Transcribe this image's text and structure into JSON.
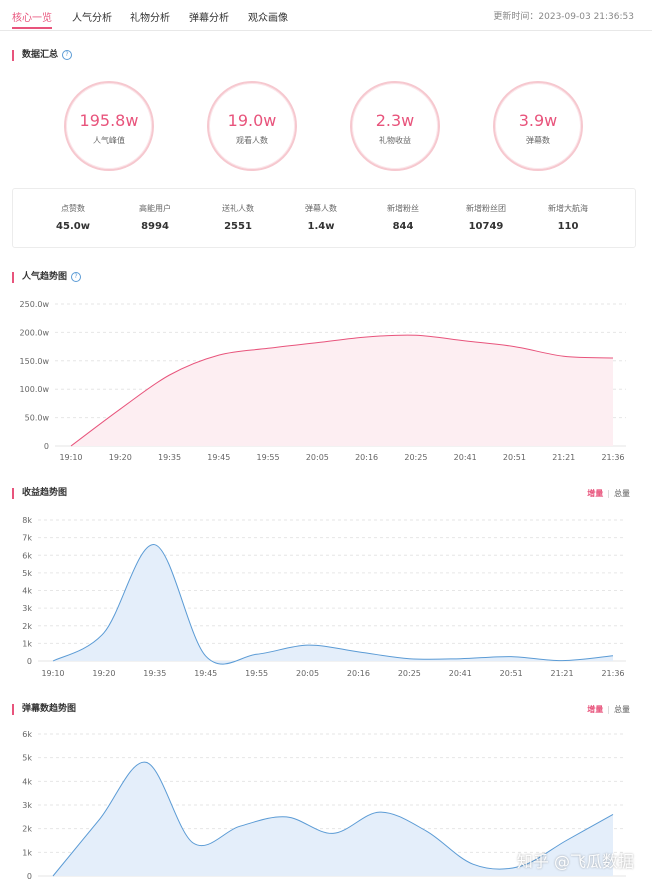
{
  "tabs": [
    "核心一览",
    "人气分析",
    "礼物分析",
    "弹幕分析",
    "观众画像"
  ],
  "active_tab": 0,
  "update_time": "更新时间：2023-09-03 21:36:53",
  "summary": {
    "title": "数据汇总",
    "circles": [
      {
        "value": "195.8w",
        "label": "人气峰值"
      },
      {
        "value": "19.0w",
        "label": "观看人数"
      },
      {
        "value": "2.3w",
        "label": "礼物收益"
      },
      {
        "value": "3.9w",
        "label": "弹幕数"
      }
    ],
    "stats": [
      {
        "label": "点赞数",
        "value": "45.0w"
      },
      {
        "label": "高能用户",
        "value": "8994"
      },
      {
        "label": "送礼人数",
        "value": "2551"
      },
      {
        "label": "弹幕人数",
        "value": "1.4w"
      },
      {
        "label": "新增粉丝",
        "value": "844"
      },
      {
        "label": "新增粉丝团",
        "value": "10749"
      },
      {
        "label": "新增大航海",
        "value": "110"
      }
    ]
  },
  "popularity_title": "人气趋势图",
  "revenue_title": "收益趋势图",
  "danmaku_title": "弹幕数趋势图",
  "toggle": {
    "increment": "增量",
    "total": "总量"
  },
  "watermark": "知乎 @飞瓜数据",
  "colors": {
    "accent": "#e8547c",
    "blue": "#5b9bd5"
  },
  "chart_data": [
    {
      "type": "area",
      "x": [
        "19:10",
        "19:20",
        "19:35",
        "19:45",
        "19:55",
        "20:05",
        "20:16",
        "20:25",
        "20:41",
        "20:51",
        "21:21",
        "21:36"
      ],
      "y_ticks": [
        "0",
        "50.0w",
        "100.0w",
        "150.0w",
        "200.0w",
        "250.0w"
      ],
      "ylim": [
        0,
        250
      ],
      "values": [
        0,
        65,
        125,
        160,
        172,
        182,
        192,
        195,
        185,
        175,
        158,
        155
      ],
      "color": "#e8547c"
    },
    {
      "type": "area",
      "x": [
        "19:10",
        "19:20",
        "19:35",
        "19:45",
        "19:55",
        "20:05",
        "20:16",
        "20:25",
        "20:41",
        "20:51",
        "21:21",
        "21:36"
      ],
      "y_ticks": [
        "0",
        "1k",
        "2k",
        "3k",
        "4k",
        "5k",
        "6k",
        "7k",
        "8k"
      ],
      "ylim": [
        0,
        8000
      ],
      "values": [
        0,
        1600,
        6600,
        280,
        380,
        900,
        520,
        130,
        130,
        250,
        20,
        300
      ],
      "color": "#5b9bd5"
    },
    {
      "type": "area",
      "y_ticks": [
        "0",
        "1k",
        "2k",
        "3k",
        "4k",
        "5k",
        "6k"
      ],
      "ylim": [
        0,
        6000
      ],
      "values": [
        0,
        2400,
        4800,
        1400,
        2100,
        2500,
        1800,
        2700,
        1900,
        500,
        400,
        1500,
        2600
      ],
      "color": "#5b9bd5"
    }
  ]
}
